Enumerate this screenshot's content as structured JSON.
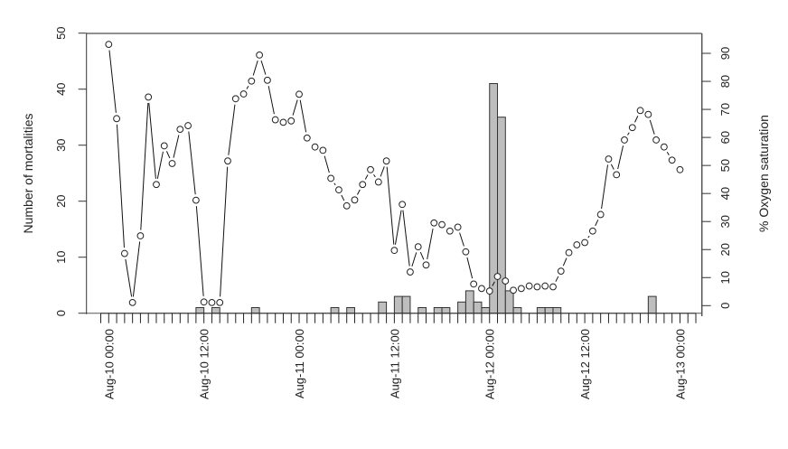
{
  "chart_data": {
    "type": "bar+line",
    "title": "",
    "xlabel": "",
    "x_unit": "hours since Aug-10 00:00",
    "x_tick_labels": [
      {
        "hour": 0,
        "label": "Aug-10 00:00"
      },
      {
        "hour": 12,
        "label": "Aug-10 12:00"
      },
      {
        "hour": 24,
        "label": "Aug-11 00:00"
      },
      {
        "hour": 36,
        "label": "Aug-11 12:00"
      },
      {
        "hour": 48,
        "label": "Aug-12 00:00"
      },
      {
        "hour": 60,
        "label": "Aug-12 12:00"
      },
      {
        "hour": 72,
        "label": "Aug-13 00:00"
      }
    ],
    "x_minor_ticks_hours": [
      -1,
      74
    ],
    "left_axis": {
      "label": "Number of mortalities",
      "ylim": [
        0,
        50
      ],
      "ticks": [
        0,
        10,
        20,
        30,
        40,
        50
      ]
    },
    "right_axis": {
      "label": "% Oxygen saturation",
      "ylim": [
        0,
        100
      ],
      "ticks": [
        0,
        10,
        20,
        30,
        40,
        50,
        60,
        70,
        80,
        90
      ]
    },
    "series": [
      {
        "name": "Number of mortalities",
        "type": "bar",
        "axis": "left",
        "color": "#bebebe",
        "hours": [
          11,
          13,
          18,
          28,
          30,
          34,
          36,
          37,
          39,
          41,
          42,
          44,
          45,
          46,
          47,
          48,
          49,
          50,
          51,
          54,
          55,
          56,
          68
        ],
        "values": [
          1,
          1,
          1,
          1,
          1,
          2,
          3,
          3,
          1,
          1,
          1,
          2,
          4,
          2,
          1,
          41,
          35,
          4,
          1,
          1,
          1,
          1,
          3
        ]
      },
      {
        "name": "% Oxygen saturation",
        "type": "line",
        "axis": "right",
        "marker": "open-circle",
        "start_hour": 0,
        "step_hours": 1,
        "values": [
          93.2,
          66.7,
          18.6,
          1.1,
          24.9,
          74.4,
          43.2,
          57.0,
          50.7,
          62.9,
          64.2,
          37.6,
          1.3,
          1.1,
          1.1,
          51.6,
          73.8,
          75.5,
          80.1,
          89.4,
          80.4,
          66.3,
          65.4,
          65.9,
          75.4,
          59.8,
          56.6,
          55.4,
          45.4,
          41.3,
          35.6,
          37.7,
          43.2,
          48.5,
          44.1,
          51.6,
          19.7,
          36.1,
          12.0,
          21.0,
          14.5,
          29.5,
          28.9,
          26.6,
          28.0,
          19.2,
          7.7,
          6.1,
          5.2,
          10.4,
          8.8,
          5.5,
          6.1,
          7.0,
          6.7,
          7.0,
          6.7,
          12.3,
          18.9,
          21.7,
          22.5,
          26.6,
          32.5,
          52.3,
          46.7,
          59.1,
          63.5,
          69.6,
          68.2,
          59.1,
          56.6,
          51.9,
          48.5
        ]
      }
    ],
    "grid": false,
    "legend": "none"
  }
}
